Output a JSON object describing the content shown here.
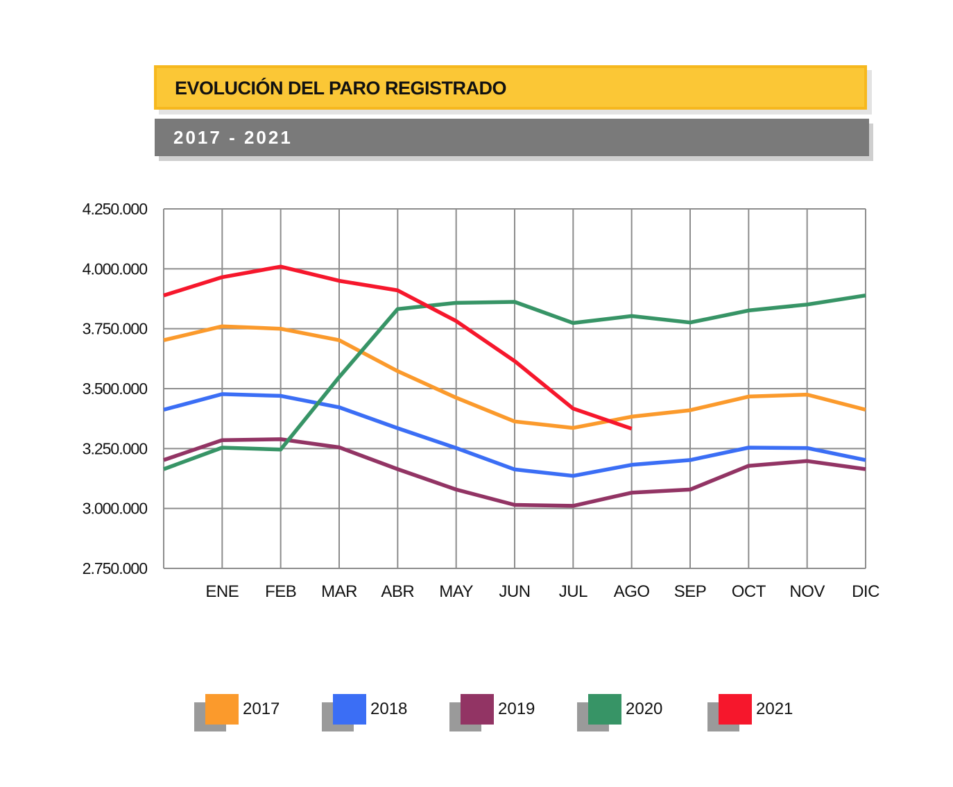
{
  "header": {
    "title": "EVOLUCIÓN DEL PARO REGISTRADO",
    "subtitle": "2017 - 2021"
  },
  "chart_data": {
    "type": "line",
    "title": "EVOLUCIÓN DEL PARO REGISTRADO",
    "subtitle": "2017 - 2021",
    "xlabel": "",
    "ylabel": "",
    "ylim": [
      2750000,
      4250000
    ],
    "ytick_values": [
      2750000,
      3000000,
      3250000,
      3500000,
      3750000,
      4000000,
      4250000
    ],
    "ytick_labels": [
      "2.750.000",
      "3.000.000",
      "3.250.000",
      "3.500.000",
      "3.750.000",
      "4.000.000",
      "4.250.000"
    ],
    "categories": [
      "",
      "ENE",
      "FEB",
      "MAR",
      "ABR",
      "MAY",
      "JUN",
      "JUL",
      "AGO",
      "SEP",
      "OCT",
      "NOV",
      "DIC"
    ],
    "grid": true,
    "legend_position": "bottom",
    "series": [
      {
        "name": "2017",
        "color": "#fb9a2c",
        "values": [
          3702000,
          3760000,
          3750000,
          3702000,
          3573000,
          3462000,
          3363000,
          3336000,
          3383000,
          3410000,
          3467000,
          3475000,
          3412000
        ]
      },
      {
        "name": "2018",
        "color": "#3b6ef5",
        "values": [
          3412000,
          3477000,
          3470000,
          3422000,
          3335000,
          3252000,
          3163000,
          3136000,
          3182000,
          3202000,
          3254000,
          3252000,
          3202000
        ]
      },
      {
        "name": "2019",
        "color": "#923464",
        "values": [
          3202000,
          3285000,
          3289000,
          3255000,
          3164000,
          3079000,
          3015000,
          3011000,
          3066000,
          3079000,
          3178000,
          3198000,
          3164000
        ]
      },
      {
        "name": "2020",
        "color": "#379466",
        "values": [
          3164000,
          3254000,
          3246000,
          3548000,
          3832000,
          3858000,
          3862000,
          3774000,
          3803000,
          3776000,
          3826000,
          3851000,
          3889000
        ]
      },
      {
        "name": "2021",
        "color": "#f6172c",
        "values": [
          3889000,
          3965000,
          4009000,
          3950000,
          3910000,
          3782000,
          3615000,
          3417000,
          3333000,
          null,
          null,
          null,
          null
        ]
      }
    ]
  }
}
